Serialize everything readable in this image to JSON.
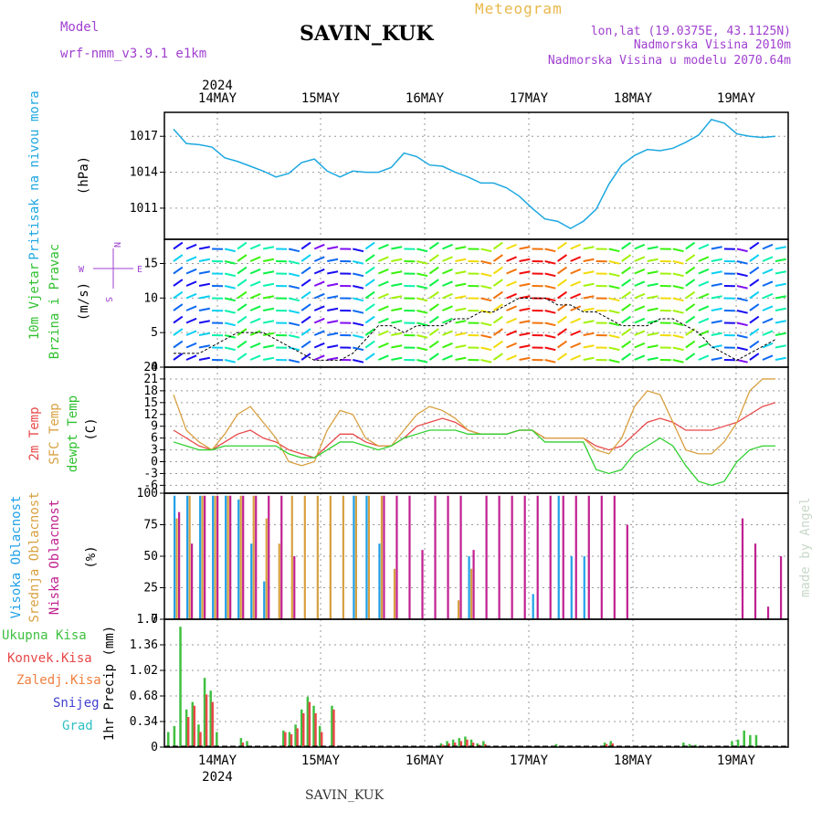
{
  "header": {
    "model_label": "Model",
    "model_name": "wrf-nmm_v3.9.1 e1km",
    "station": "SAVIN_KUK",
    "product": "Meteogram",
    "lonlat": "lon,lat (19.0375E, 43.1125N)",
    "altitude": "Nadmorska Visina 2010m",
    "model_altitude": "Nadmorska Visina u modelu 2070.64m",
    "year_top": "2024",
    "year_bottom": "2024",
    "footer_station": "SAVIN_KUK",
    "watermark": "made by Angel"
  },
  "days": [
    "14MAY",
    "15MAY",
    "16MAY",
    "17MAY",
    "18MAY",
    "19MAY"
  ],
  "colors": {
    "pressure": "#1ea8e0",
    "temp2m": "#e84848",
    "sfc_temp": "#d8a040",
    "dewpoint": "#30d030",
    "high_cloud": "#20a0e8",
    "mid_cloud": "#d8a040",
    "low_cloud": "#c02090",
    "total_precip": "#40c040",
    "conv_precip": "#e84848"
  },
  "chart_data": [
    {
      "type": "line",
      "panel": "pressure",
      "ylabel": "Pritisak na nivou mora",
      "unit": "(hPa)",
      "ylim": [
        1008.4,
        1019.0
      ],
      "yticks": [
        1011,
        1014,
        1017
      ],
      "x_hours": [
        0,
        3,
        6,
        9,
        12,
        15,
        18,
        21,
        24,
        27,
        30,
        33,
        36,
        39,
        42,
        45,
        48,
        51,
        54,
        57,
        60,
        63,
        66,
        69,
        72,
        75,
        78,
        81,
        84,
        87,
        90,
        93,
        96,
        99,
        102,
        105,
        108,
        111,
        114,
        117,
        120,
        123,
        126,
        129,
        132,
        135,
        138,
        141
      ],
      "series": [
        {
          "values": [
            1017.6,
            1016.4,
            1016.3,
            1016.1,
            1015.2,
            1014.9,
            1014.5,
            1014.1,
            1013.6,
            1013.9,
            1014.8,
            1015.1,
            1014.1,
            1013.6,
            1014.1,
            1014.0,
            1014.0,
            1014.4,
            1015.6,
            1015.3,
            1014.6,
            1014.5,
            1014.0,
            1013.6,
            1013.1,
            1013.1,
            1012.7,
            1012.0,
            1011.0,
            1010.1,
            1009.9,
            1009.3,
            1009.9,
            1010.9,
            1013.0,
            1014.6,
            1015.4,
            1015.9,
            1015.8,
            1016.0,
            1016.5,
            1017.1,
            1018.4,
            1018.1,
            1017.2,
            1017.0,
            1016.9,
            1017.0
          ]
        }
      ]
    },
    {
      "type": "line",
      "panel": "wind",
      "ylabel": "10m Vjetar Brzina i Pravac",
      "unit": "(m/s)",
      "compass": {
        "north": "N",
        "west": "W",
        "east": "E",
        "south": "S"
      },
      "ylim": [
        0,
        18.5
      ],
      "yticks": [
        0,
        5,
        10,
        15
      ],
      "x_hours": [
        0,
        3,
        6,
        9,
        12,
        15,
        18,
        21,
        24,
        27,
        30,
        33,
        36,
        39,
        42,
        45,
        48,
        51,
        54,
        57,
        60,
        63,
        66,
        69,
        72,
        75,
        78,
        81,
        84,
        87,
        90,
        93,
        96,
        99,
        102,
        105,
        108,
        111,
        114,
        117,
        120,
        123,
        126,
        129,
        132,
        135,
        138,
        141
      ],
      "series": [
        {
          "name": "speed",
          "values": [
            2,
            2,
            2,
            3,
            4,
            5,
            5,
            5,
            4,
            3,
            2,
            1,
            1,
            1,
            2,
            4,
            6,
            6,
            5,
            6,
            6,
            6,
            7,
            7,
            8,
            8,
            9,
            10,
            10,
            10,
            9,
            9,
            8,
            8,
            7,
            6,
            6,
            6,
            7,
            7,
            6,
            5,
            3,
            2,
            1,
            2,
            3,
            4
          ]
        }
      ]
    },
    {
      "type": "line",
      "panel": "temperature",
      "series_labels": [
        "2m Temp",
        "SFC Temp",
        "dewpt Temp"
      ],
      "unit": "(C)",
      "ylim": [
        -8,
        24
      ],
      "yticks": [
        -6,
        -3,
        0,
        3,
        6,
        9,
        12,
        15,
        18,
        21,
        24
      ],
      "x_hours": [
        0,
        3,
        6,
        9,
        12,
        15,
        18,
        21,
        24,
        27,
        30,
        33,
        36,
        39,
        42,
        45,
        48,
        51,
        54,
        57,
        60,
        63,
        66,
        69,
        72,
        75,
        78,
        81,
        84,
        87,
        90,
        93,
        96,
        99,
        102,
        105,
        108,
        111,
        114,
        117,
        120,
        123,
        126,
        129,
        132,
        135,
        138,
        141
      ],
      "series": [
        {
          "name": "2m Temp",
          "values": [
            8,
            6,
            4,
            3,
            5,
            7,
            8,
            6,
            5,
            3,
            2,
            1,
            4,
            7,
            7,
            5,
            4,
            4,
            6,
            9,
            10,
            11,
            10,
            8,
            7,
            7,
            7,
            8,
            8,
            6,
            6,
            6,
            6,
            4,
            3,
            4,
            7,
            10,
            11,
            10,
            8,
            8,
            8,
            9,
            10,
            12,
            14,
            15
          ]
        },
        {
          "name": "SFC Temp",
          "values": [
            17,
            8,
            5,
            3,
            7,
            12,
            14,
            10,
            6,
            0,
            -1,
            0,
            8,
            13,
            12,
            6,
            4,
            4,
            8,
            12,
            14,
            13,
            11,
            8,
            7,
            7,
            7,
            8,
            8,
            6,
            6,
            6,
            6,
            3,
            2,
            6,
            14,
            18,
            17,
            10,
            3,
            2,
            2,
            5,
            10,
            18,
            21,
            21
          ]
        },
        {
          "name": "dewpt Temp",
          "values": [
            5,
            4,
            3,
            3,
            4,
            4,
            4,
            4,
            4,
            2,
            1,
            1,
            3,
            5,
            5,
            4,
            3,
            4,
            6,
            7,
            8,
            8,
            8,
            7,
            7,
            7,
            7,
            8,
            8,
            5,
            5,
            5,
            5,
            -2,
            -3,
            -2,
            2,
            4,
            6,
            4,
            -1,
            -5,
            -6,
            -5,
            0,
            3,
            4,
            4
          ]
        }
      ]
    },
    {
      "type": "bar",
      "panel": "clouds",
      "series_labels": [
        "Visoka Oblacnost",
        "Srednja Oblacnost",
        "Niska Oblacnost"
      ],
      "unit": "(%)",
      "ylim": [
        0,
        100
      ],
      "yticks": [
        0,
        25,
        50,
        75,
        100
      ],
      "x_hours": [
        0,
        3,
        6,
        9,
        12,
        15,
        18,
        21,
        24,
        27,
        30,
        33,
        36,
        39,
        42,
        45,
        48,
        51,
        54,
        57,
        60,
        63,
        66,
        69,
        72,
        75,
        78,
        81,
        84,
        87,
        90,
        93,
        96,
        99,
        102,
        105,
        108,
        111,
        114,
        117,
        120,
        123,
        126,
        129,
        132,
        135,
        138,
        141
      ],
      "series": [
        {
          "name": "Visoka Oblacnost",
          "values": [
            98,
            98,
            98,
            98,
            98,
            95,
            60,
            30,
            0,
            0,
            0,
            0,
            0,
            0,
            98,
            98,
            60,
            0,
            0,
            0,
            0,
            0,
            0,
            50,
            0,
            0,
            0,
            0,
            20,
            0,
            98,
            50,
            50,
            0,
            0,
            0,
            0,
            0,
            0,
            0,
            0,
            0,
            0,
            0,
            0,
            0,
            0,
            0
          ]
        },
        {
          "name": "Srednja Oblacnost",
          "values": [
            80,
            98,
            98,
            98,
            98,
            98,
            98,
            80,
            60,
            98,
            98,
            98,
            98,
            98,
            98,
            98,
            98,
            40,
            0,
            0,
            0,
            0,
            15,
            40,
            0,
            0,
            0,
            0,
            0,
            0,
            0,
            0,
            0,
            0,
            0,
            0,
            0,
            0,
            0,
            0,
            0,
            0,
            0,
            0,
            0,
            0,
            0,
            0
          ]
        },
        {
          "name": "Niska Oblacnost",
          "values": [
            85,
            60,
            98,
            98,
            98,
            98,
            98,
            98,
            98,
            50,
            0,
            0,
            0,
            0,
            0,
            0,
            98,
            98,
            98,
            55,
            98,
            98,
            98,
            55,
            98,
            98,
            98,
            98,
            98,
            98,
            98,
            98,
            98,
            98,
            98,
            75,
            0,
            0,
            0,
            0,
            0,
            0,
            0,
            0,
            80,
            60,
            10,
            50
          ]
        }
      ]
    },
    {
      "type": "bar",
      "panel": "precipitation",
      "series_labels": [
        "Ukupna Kisa",
        "Konvek.Kisa",
        "Zaledj.Kisa",
        "Snijeg",
        "Grad"
      ],
      "ylabel": "1hr Precip (mm)",
      "ylim": [
        0,
        1.7
      ],
      "yticks": [
        0,
        0.34,
        0.68,
        1.02,
        1.36,
        1.7
      ],
      "x_hours": [
        0,
        1,
        2,
        3,
        4,
        5,
        6,
        7,
        8,
        9,
        10,
        11,
        12,
        13,
        14,
        15,
        16,
        17,
        18,
        19,
        20,
        21,
        22,
        23,
        24,
        25,
        26,
        27,
        28,
        29,
        30,
        31,
        32,
        33,
        34,
        35,
        36,
        37,
        38,
        39,
        40,
        41,
        42,
        43,
        44,
        45,
        46,
        47,
        48,
        49,
        50,
        51,
        52,
        53,
        54,
        55,
        56,
        57,
        58,
        59,
        60,
        61,
        62,
        63,
        64,
        65,
        66,
        67,
        68,
        69,
        70,
        71,
        72,
        73,
        74,
        75,
        76,
        77,
        78,
        79,
        80,
        81,
        82,
        83,
        84,
        85,
        86,
        87,
        88,
        89,
        90,
        91,
        92,
        93,
        94,
        95,
        96,
        97
      ],
      "series": [
        {
          "name": "Ukupna Kisa",
          "values": [
            0.2,
            0.28,
            1.6,
            0.5,
            0.6,
            0.3,
            0.92,
            0.75,
            0.2,
            0,
            0,
            0,
            0.12,
            0.08,
            0,
            0,
            0,
            0,
            0,
            0.22,
            0.2,
            0.3,
            0.5,
            0.67,
            0.55,
            0.28,
            0,
            0.55,
            0,
            0,
            0,
            0,
            0,
            0,
            0,
            0,
            0,
            0,
            0,
            0,
            0,
            0,
            0,
            0,
            0,
            0.05,
            0.08,
            0.1,
            0.12,
            0.14,
            0.1,
            0.05,
            0.08,
            0,
            0,
            0,
            0,
            0,
            0,
            0,
            0,
            0,
            0,
            0,
            0.04,
            0,
            0,
            0,
            0,
            0,
            0,
            0,
            0.06,
            0.08,
            0,
            0,
            0,
            0,
            0,
            0,
            0,
            0,
            0,
            0,
            0,
            0.06,
            0.04,
            0.03,
            0,
            0,
            0,
            0,
            0,
            0.08,
            0.1,
            0.22,
            0.16,
            0.16
          ]
        },
        {
          "name": "Konvek.Kisa",
          "values": [
            0,
            0,
            0,
            0.4,
            0.55,
            0.2,
            0.7,
            0.6,
            0,
            0,
            0,
            0,
            0.06,
            0,
            0,
            0,
            0,
            0,
            0,
            0.2,
            0.17,
            0.25,
            0.45,
            0.6,
            0.45,
            0.2,
            0,
            0.5,
            0,
            0,
            0,
            0,
            0,
            0,
            0,
            0,
            0,
            0,
            0,
            0,
            0,
            0,
            0,
            0,
            0,
            0.03,
            0.05,
            0.06,
            0.08,
            0.1,
            0.06,
            0.03,
            0.04,
            0,
            0,
            0,
            0,
            0,
            0,
            0,
            0,
            0,
            0,
            0,
            0,
            0,
            0,
            0,
            0,
            0,
            0,
            0,
            0.04,
            0.05,
            0,
            0,
            0,
            0,
            0,
            0,
            0,
            0,
            0,
            0,
            0,
            0,
            0,
            0,
            0,
            0,
            0,
            0,
            0,
            0,
            0,
            0,
            0,
            0
          ]
        }
      ]
    }
  ]
}
